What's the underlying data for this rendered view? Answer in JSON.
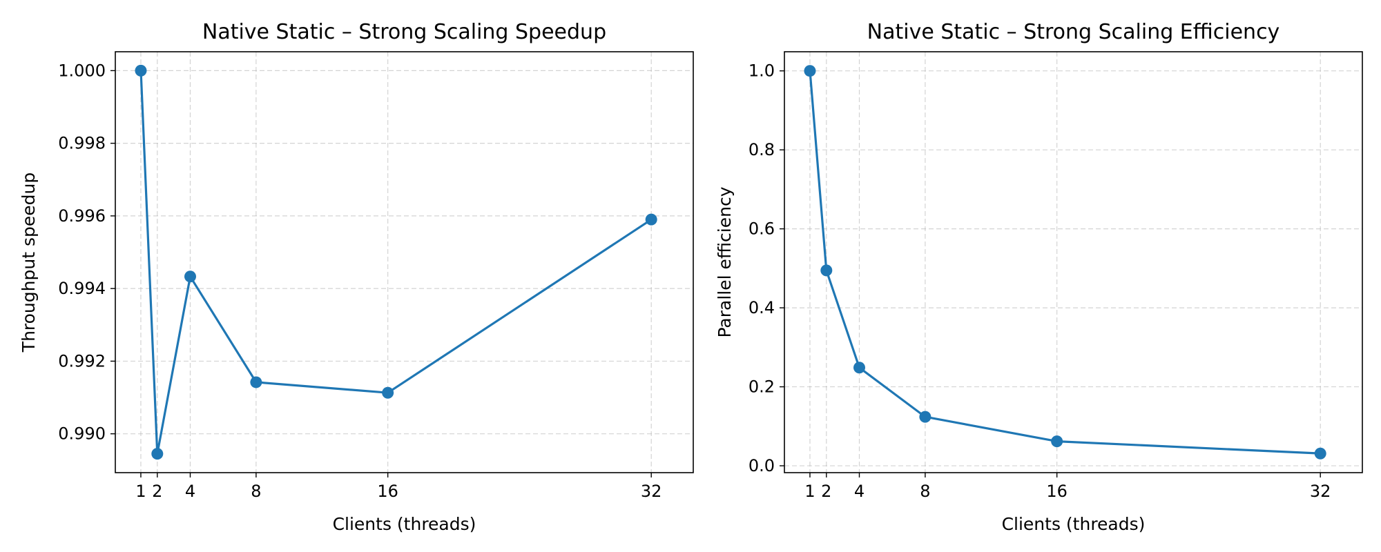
{
  "chart_data": [
    {
      "type": "line",
      "title": "Native Static – Strong Scaling Speedup",
      "xlabel": "Clients (threads)",
      "ylabel": "Throughput speedup",
      "x": [
        1,
        2,
        4,
        8,
        16,
        32
      ],
      "series": [
        {
          "values": [
            1.0,
            0.98945,
            0.99433,
            0.99142,
            0.99113,
            0.9959
          ]
        }
      ],
      "xticks": [
        1,
        2,
        4,
        8,
        16,
        32
      ],
      "xtick_labels": [
        "1",
        "2",
        "4",
        "8",
        "16",
        "32"
      ],
      "yticks": [
        0.99,
        0.992,
        0.994,
        0.996,
        0.998,
        1.0
      ],
      "ytick_labels": [
        "0.990",
        "0.992",
        "0.994",
        "0.996",
        "0.998",
        "1.000"
      ],
      "xlim": [
        -0.55,
        34.55
      ],
      "ylim": [
        0.98893,
        1.00052
      ],
      "grid": true,
      "color": "#1f77b4"
    },
    {
      "type": "line",
      "title": "Native Static – Strong Scaling Efficiency",
      "xlabel": "Clients (threads)",
      "ylabel": "Parallel efficiency",
      "x": [
        1,
        2,
        4,
        8,
        16,
        32
      ],
      "series": [
        {
          "values": [
            1.0,
            0.4947,
            0.2486,
            0.1239,
            0.0619,
            0.0311
          ]
        }
      ],
      "xticks": [
        1,
        2,
        4,
        8,
        16,
        32
      ],
      "xtick_labels": [
        "1",
        "2",
        "4",
        "8",
        "16",
        "32"
      ],
      "yticks": [
        0.0,
        0.2,
        0.4,
        0.6,
        0.8,
        1.0
      ],
      "ytick_labels": [
        "0.0",
        "0.2",
        "0.4",
        "0.6",
        "0.8",
        "1.0"
      ],
      "xlim": [
        -0.55,
        34.55
      ],
      "ylim": [
        -0.0174,
        1.0484
      ],
      "grid": true,
      "color": "#1f77b4"
    }
  ]
}
